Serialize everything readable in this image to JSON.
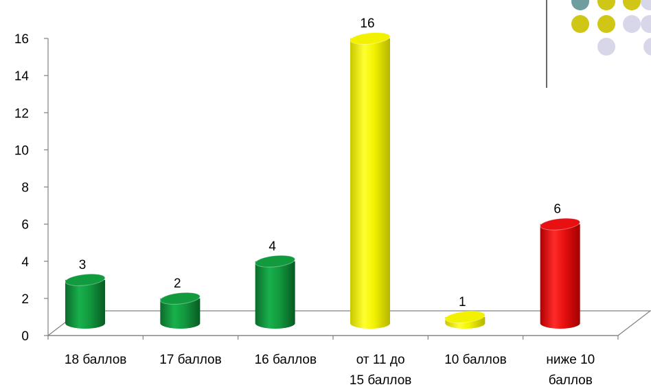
{
  "chart_data": {
    "type": "bar",
    "title": "",
    "xlabel": "",
    "ylabel": "",
    "ylim": [
      0,
      16
    ],
    "yticks": [
      0,
      2,
      4,
      6,
      8,
      10,
      12,
      14,
      16
    ],
    "grid": false,
    "legend": "none",
    "categories": [
      [
        "18 баллов"
      ],
      [
        "17 баллов"
      ],
      [
        "16 баллов"
      ],
      [
        "от 11 до",
        "15 баллов"
      ],
      [
        "10 баллов"
      ],
      [
        "ниже 10",
        "баллов"
      ]
    ],
    "values": [
      3,
      2,
      4,
      16,
      1,
      6
    ],
    "data_labels": [
      "3",
      "2",
      "4",
      "16",
      "1",
      "6"
    ],
    "bar_colors": [
      "#129a3f",
      "#129a3f",
      "#129a3f",
      "#f2f200",
      "#f2f200",
      "#e81010"
    ],
    "bar_shape": "cylinder"
  },
  "decoration": {
    "dot_colors": [
      "#6f9ea0",
      "#cfc616",
      "#d8d7ea"
    ]
  }
}
